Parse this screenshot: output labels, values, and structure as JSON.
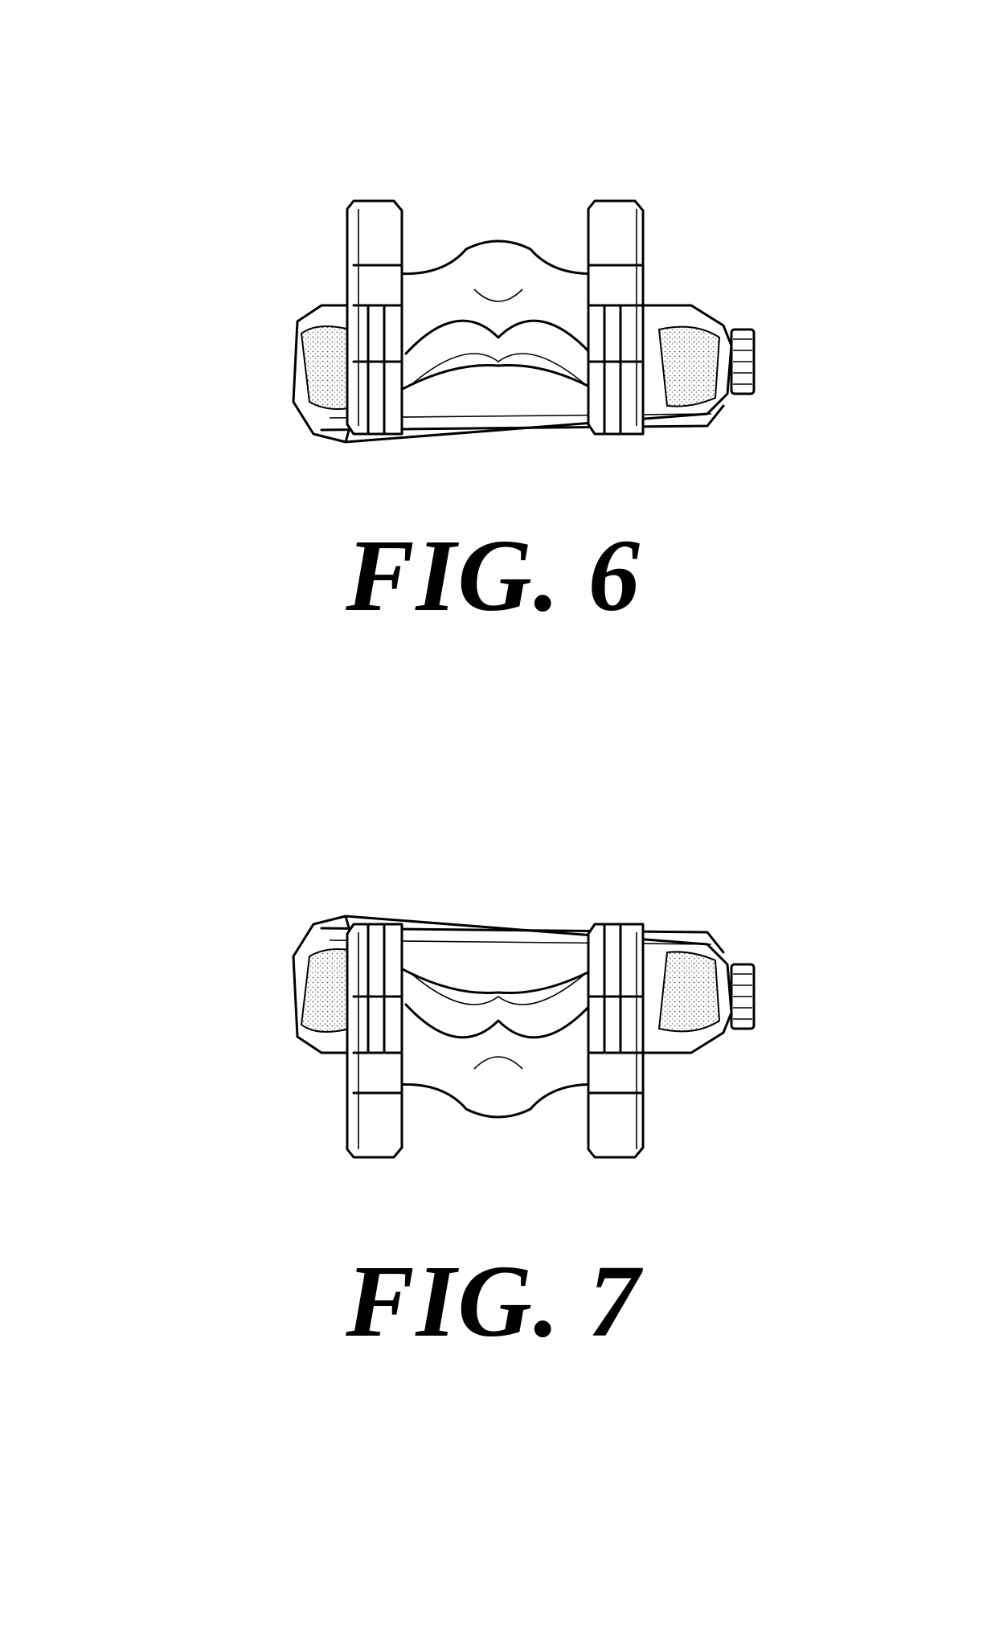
{
  "figures": [
    {
      "caption": "FIG. 6"
    },
    {
      "caption": "FIG. 7"
    }
  ]
}
